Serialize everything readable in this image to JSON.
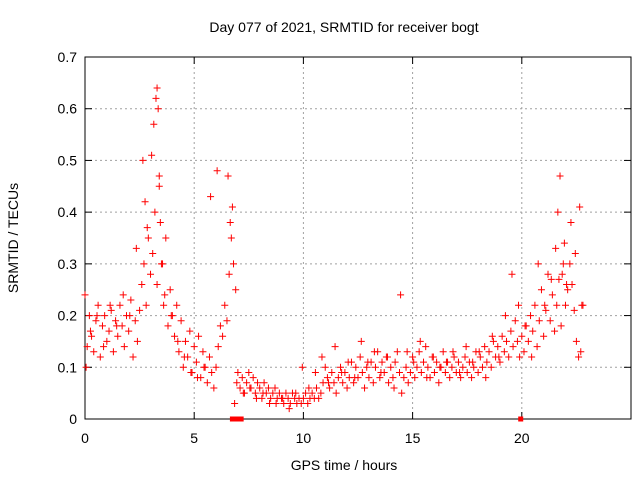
{
  "chart_data": {
    "type": "scatter",
    "title": "Day 077 of 2021, SRMTID for receiver bogt",
    "xlabel": "GPS time / hours",
    "ylabel": "SRMTID / TECUs",
    "xlim": [
      0,
      25
    ],
    "ylim": [
      0,
      0.7
    ],
    "xticks": [
      0,
      5,
      10,
      15,
      20
    ],
    "xtick_labels": [
      "0",
      "5",
      "10",
      "15",
      "20"
    ],
    "yticks": [
      0,
      0.1,
      0.2,
      0.3,
      0.4,
      0.5,
      0.6,
      0.7
    ],
    "ytick_labels": [
      "0",
      "0.1",
      "0.2",
      "0.3",
      "0.4",
      "0.5",
      "0.6",
      "0.7"
    ],
    "grid": true,
    "marker": "plus",
    "color": "#ff0000",
    "zero_points_x": [
      6.75,
      6.85,
      7.05,
      7.15,
      19.95
    ],
    "series": [
      {
        "name": "SRMTID",
        "x": [
          0.0,
          0.1,
          0.2,
          0.3,
          0.4,
          0.5,
          0.6,
          0.7,
          0.8,
          0.9,
          1.0,
          1.1,
          1.2,
          1.3,
          1.4,
          1.5,
          1.6,
          1.7,
          1.8,
          1.9,
          2.0,
          2.1,
          2.2,
          2.3,
          2.4,
          2.5,
          2.6,
          2.7,
          2.8,
          2.9,
          3.0,
          3.1,
          3.2,
          3.3,
          3.4,
          3.5,
          3.6,
          3.7,
          3.8,
          3.9,
          4.0,
          4.1,
          4.2,
          4.3,
          4.4,
          4.5,
          4.6,
          4.7,
          4.8,
          4.9,
          5.0,
          5.1,
          5.2,
          5.3,
          5.4,
          5.5,
          5.6,
          5.7,
          5.8,
          5.9,
          6.0,
          6.1,
          6.2,
          6.3,
          6.4,
          6.5,
          6.6,
          6.7,
          6.8,
          6.9,
          7.0,
          7.1,
          7.2,
          7.3,
          7.4,
          7.5,
          7.6,
          7.7,
          7.8,
          7.9,
          8.0,
          8.1,
          8.2,
          8.3,
          8.4,
          8.5,
          8.6,
          8.7,
          8.8,
          8.9,
          9.0,
          9.1,
          9.2,
          9.3,
          9.4,
          9.5,
          9.6,
          9.7,
          9.8,
          9.9,
          10.0,
          10.1,
          10.2,
          10.3,
          10.4,
          10.5,
          10.6,
          10.7,
          10.8,
          10.9,
          11.0,
          11.1,
          11.2,
          11.3,
          11.4,
          11.5,
          11.6,
          11.7,
          11.8,
          11.9,
          12.0,
          12.1,
          12.2,
          12.3,
          12.4,
          12.5,
          12.6,
          12.7,
          12.8,
          12.9,
          13.0,
          13.1,
          13.2,
          13.3,
          13.4,
          13.5,
          13.6,
          13.7,
          13.8,
          13.9,
          14.0,
          14.1,
          14.2,
          14.3,
          14.4,
          14.5,
          14.6,
          14.7,
          14.8,
          14.9,
          15.0,
          15.1,
          15.2,
          15.3,
          15.4,
          15.5,
          15.6,
          15.7,
          15.8,
          15.9,
          16.0,
          16.1,
          16.2,
          16.3,
          16.4,
          16.5,
          16.6,
          16.7,
          16.8,
          16.9,
          17.0,
          17.1,
          17.2,
          17.3,
          17.4,
          17.5,
          17.6,
          17.7,
          17.8,
          17.9,
          18.0,
          18.1,
          18.2,
          18.3,
          18.4,
          18.5,
          18.6,
          18.7,
          18.8,
          18.9,
          19.0,
          19.1,
          19.2,
          19.3,
          19.4,
          19.5,
          19.6,
          19.7,
          19.8,
          19.9,
          20.0,
          20.1,
          20.2,
          20.3,
          20.4,
          20.5,
          20.6,
          20.7,
          20.8,
          20.9,
          21.0,
          21.1,
          21.2,
          21.3,
          21.4,
          21.5,
          21.6,
          21.7,
          21.8,
          21.9,
          22.0,
          22.1,
          22.2,
          22.3,
          22.4,
          22.5,
          22.6,
          22.7,
          22.8,
          0.05,
          0.25,
          0.55,
          0.85,
          1.15,
          1.45,
          1.75,
          2.05,
          2.35,
          2.65,
          2.75,
          2.85,
          3.05,
          3.15,
          3.25,
          3.3,
          3.35,
          3.4,
          3.45,
          3.55,
          3.65,
          3.95,
          4.25,
          4.55,
          4.85,
          5.15,
          5.45,
          5.75,
          6.05,
          6.55,
          6.65,
          6.75,
          6.85,
          6.95,
          7.25,
          7.55,
          7.85,
          8.15,
          8.45,
          8.75,
          9.05,
          9.35,
          9.65,
          9.95,
          10.25,
          10.55,
          10.85,
          11.15,
          11.45,
          11.75,
          12.05,
          12.35,
          12.65,
          12.95,
          13.25,
          13.55,
          13.85,
          14.15,
          14.45,
          14.75,
          15.05,
          15.35,
          15.65,
          15.95,
          16.25,
          16.55,
          16.85,
          17.15,
          17.45,
          17.75,
          18.05,
          18.35,
          18.65,
          18.95,
          19.25,
          19.55,
          19.85,
          20.15,
          20.45,
          20.75,
          21.05,
          21.35,
          21.55,
          21.65,
          21.75,
          21.85,
          21.95,
          22.05,
          22.25,
          22.45,
          22.65,
          22.75
        ],
        "y": [
          0.24,
          0.14,
          0.2,
          0.16,
          0.13,
          0.19,
          0.22,
          0.12,
          0.18,
          0.2,
          0.15,
          0.17,
          0.21,
          0.13,
          0.19,
          0.16,
          0.22,
          0.18,
          0.14,
          0.2,
          0.17,
          0.23,
          0.12,
          0.19,
          0.15,
          0.21,
          0.26,
          0.3,
          0.22,
          0.35,
          0.28,
          0.32,
          0.4,
          0.26,
          0.45,
          0.3,
          0.22,
          0.35,
          0.18,
          0.25,
          0.2,
          0.16,
          0.22,
          0.13,
          0.19,
          0.1,
          0.15,
          0.12,
          0.17,
          0.09,
          0.14,
          0.11,
          0.16,
          0.08,
          0.13,
          0.1,
          0.07,
          0.12,
          0.09,
          0.06,
          0.1,
          0.14,
          0.18,
          0.16,
          0.22,
          0.19,
          0.28,
          0.35,
          0.3,
          0.25,
          0.09,
          0.06,
          0.08,
          0.05,
          0.07,
          0.09,
          0.06,
          0.08,
          0.05,
          0.07,
          0.06,
          0.04,
          0.07,
          0.05,
          0.06,
          0.04,
          0.05,
          0.06,
          0.04,
          0.05,
          0.04,
          0.03,
          0.05,
          0.04,
          0.03,
          0.05,
          0.04,
          0.03,
          0.04,
          0.03,
          0.04,
          0.05,
          0.03,
          0.04,
          0.05,
          0.04,
          0.06,
          0.04,
          0.05,
          0.07,
          0.1,
          0.08,
          0.06,
          0.09,
          0.07,
          0.05,
          0.08,
          0.1,
          0.07,
          0.09,
          0.06,
          0.08,
          0.11,
          0.07,
          0.1,
          0.08,
          0.12,
          0.09,
          0.06,
          0.1,
          0.08,
          0.11,
          0.07,
          0.1,
          0.13,
          0.08,
          0.11,
          0.09,
          0.12,
          0.07,
          0.1,
          0.08,
          0.11,
          0.13,
          0.09,
          0.05,
          0.08,
          0.1,
          0.07,
          0.09,
          0.12,
          0.08,
          0.1,
          0.13,
          0.09,
          0.11,
          0.14,
          0.1,
          0.08,
          0.12,
          0.09,
          0.11,
          0.07,
          0.1,
          0.13,
          0.09,
          0.11,
          0.08,
          0.1,
          0.12,
          0.09,
          0.11,
          0.08,
          0.1,
          0.12,
          0.09,
          0.11,
          0.08,
          0.1,
          0.13,
          0.09,
          0.12,
          0.1,
          0.14,
          0.11,
          0.13,
          0.1,
          0.15,
          0.12,
          0.14,
          0.11,
          0.16,
          0.13,
          0.15,
          0.12,
          0.17,
          0.14,
          0.19,
          0.15,
          0.12,
          0.16,
          0.13,
          0.18,
          0.15,
          0.2,
          0.17,
          0.22,
          0.14,
          0.19,
          0.25,
          0.16,
          0.21,
          0.28,
          0.19,
          0.24,
          0.17,
          0.22,
          0.27,
          0.18,
          0.3,
          0.22,
          0.25,
          0.3,
          0.26,
          0.21,
          0.15,
          0.12,
          0.13,
          0.22,
          0.1,
          0.17,
          0.2,
          0.14,
          0.22,
          0.18,
          0.24,
          0.2,
          0.33,
          0.5,
          0.42,
          0.37,
          0.51,
          0.57,
          0.62,
          0.64,
          0.6,
          0.47,
          0.38,
          0.3,
          0.24,
          0.2,
          0.15,
          0.12,
          0.09,
          0.08,
          0.1,
          0.43,
          0.48,
          0.47,
          0.38,
          0.41,
          0.03,
          0.07,
          0.05,
          0.06,
          0.04,
          0.05,
          0.03,
          0.03,
          0.04,
          0.02,
          0.05,
          0.1,
          0.06,
          0.09,
          0.12,
          0.07,
          0.14,
          0.09,
          0.11,
          0.08,
          0.15,
          0.11,
          0.13,
          0.09,
          0.12,
          0.06,
          0.24,
          0.13,
          0.11,
          0.15,
          0.08,
          0.12,
          0.1,
          0.11,
          0.13,
          0.09,
          0.14,
          0.11,
          0.13,
          0.08,
          0.16,
          0.12,
          0.2,
          0.28,
          0.22,
          0.18,
          0.12,
          0.3,
          0.22,
          0.27,
          0.33,
          0.4,
          0.47,
          0.28,
          0.34,
          0.26,
          0.38,
          0.32,
          0.41,
          0.22
        ]
      }
    ]
  }
}
